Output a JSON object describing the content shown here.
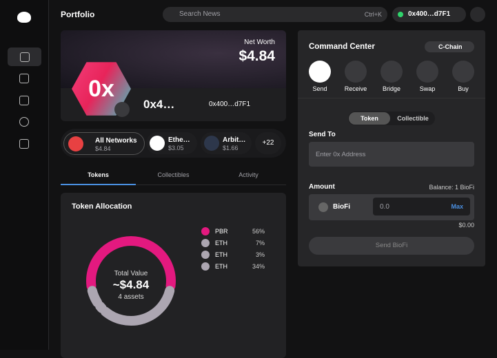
{
  "header": {
    "title": "Portfolio",
    "search_placeholder": "Search News",
    "shortcut": "Ctrl+K",
    "address": "0x400…d7F1"
  },
  "hero": {
    "net_worth_label": "Net Worth",
    "net_worth": "$4.84",
    "avatar": "0x",
    "name": "0x4…",
    "address": "0x400…d7F1"
  },
  "networks": [
    {
      "name": "All Networks",
      "value": "$4.84"
    },
    {
      "name": "Ethe…",
      "value": "$3.05"
    },
    {
      "name": "Arbit…",
      "value": "$1.66"
    }
  ],
  "more_networks": "+22",
  "tabs": [
    "Tokens",
    "Collectibles",
    "Activity"
  ],
  "allocation": {
    "title": "Token Allocation",
    "center_label": "Total Value",
    "total": "~$4.84",
    "count": "4 assets",
    "tokens": [
      "PBR",
      "ETH",
      "ETH",
      "ETH"
    ],
    "values": [
      56,
      7,
      3,
      34
    ],
    "value_labels": [
      "56%",
      "7%",
      "3%",
      "34%"
    ],
    "colors": [
      "#e3197f",
      "#aca6b1",
      "#aca6b1",
      "#aca6b1"
    ]
  },
  "command": {
    "title": "Command Center",
    "chain": "C-Chain",
    "actions": [
      "Send",
      "Receive",
      "Bridge",
      "Swap",
      "Buy"
    ],
    "toggle": [
      "Token",
      "Collectible"
    ],
    "send_to_label": "Send To",
    "address_placeholder": "Enter 0x Address",
    "amount_label": "Amount",
    "balance": "Balance: 1 BioFi",
    "token": "BioFi",
    "amount_placeholder": "0.0",
    "max": "Max",
    "usd": "$0.00",
    "submit": "Send BioFi"
  }
}
